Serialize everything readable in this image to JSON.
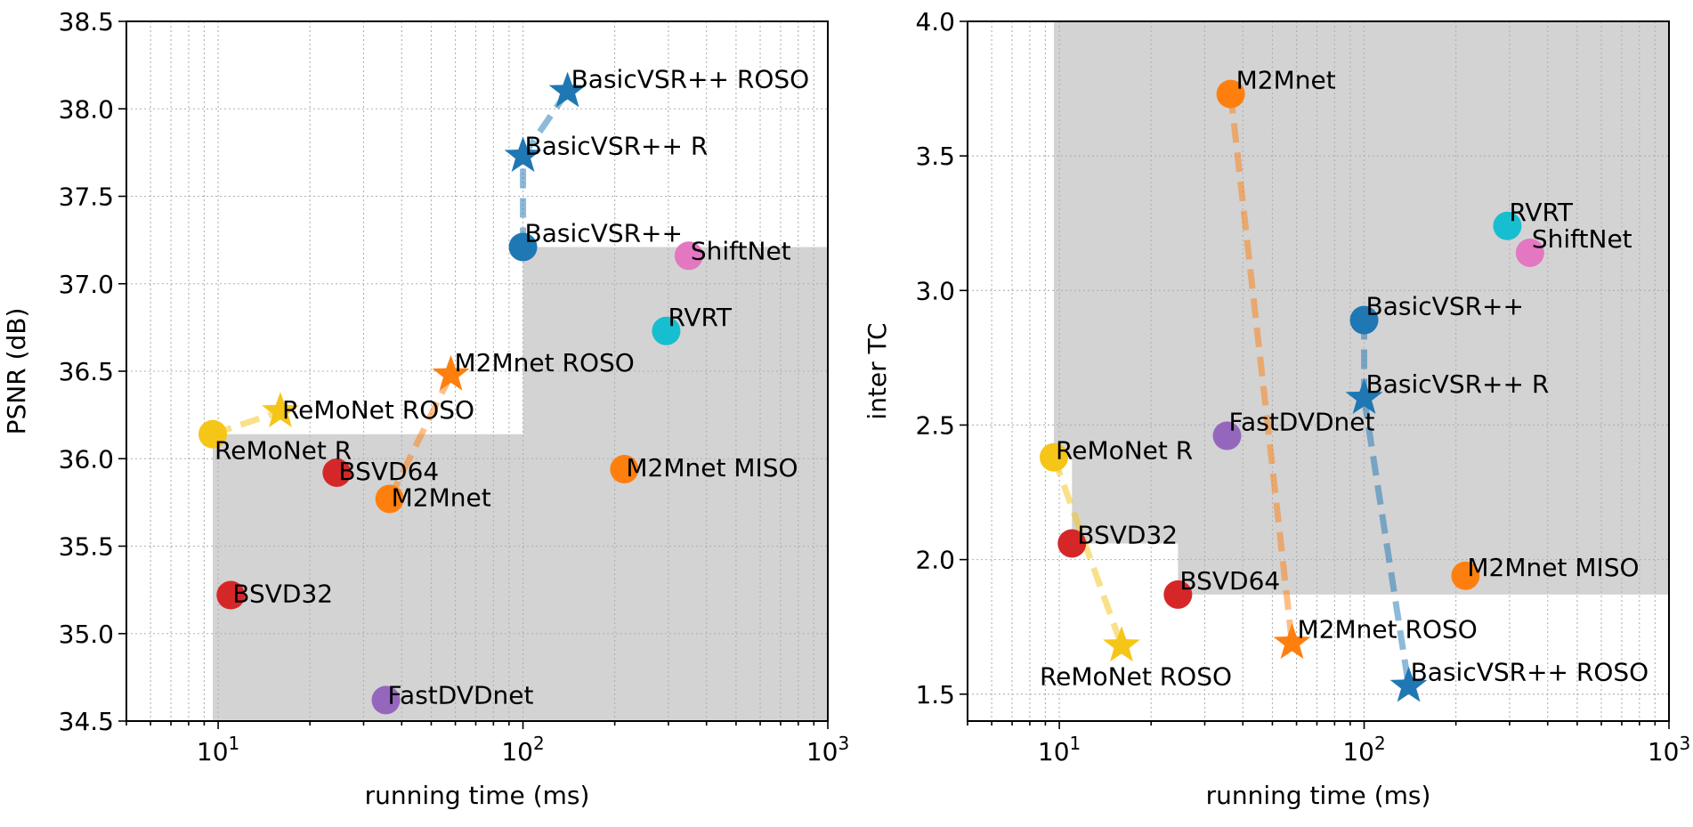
{
  "chart_data": [
    {
      "type": "scatter",
      "xscale": "log",
      "xlim": [
        5,
        1000
      ],
      "ylim": [
        34.5,
        38.5
      ],
      "xlabel": "running time (ms)",
      "ylabel": "PSNR (dB)",
      "grid": "both major and minor, dotted",
      "xticks": [
        "10^1",
        "10^2",
        "10^3"
      ],
      "yticks": [
        "34.5",
        "35.0",
        "35.5",
        "36.0",
        "36.5",
        "37.0",
        "37.5",
        "38.0",
        "38.5"
      ],
      "points": [
        {
          "label": "BasicVSR++ ROSO",
          "x": 140,
          "y": 38.1,
          "marker": "star",
          "color": "#1f77b4"
        },
        {
          "label": "BasicVSR++ R",
          "x": 100,
          "y": 37.73,
          "marker": "star",
          "color": "#1f77b4"
        },
        {
          "label": "BasicVSR++",
          "x": 100,
          "y": 37.21,
          "marker": "circle",
          "color": "#1f77b4"
        },
        {
          "label": "ShiftNet",
          "x": 350,
          "y": 37.16,
          "marker": "circle",
          "color": "#e377c2"
        },
        {
          "label": "RVRT",
          "x": 295,
          "y": 36.73,
          "marker": "circle",
          "color": "#17becf"
        },
        {
          "label": "M2Mnet ROSO",
          "x": 58,
          "y": 36.48,
          "marker": "star",
          "color": "#ff7f0e"
        },
        {
          "label": "ReMoNet ROSO",
          "x": 16,
          "y": 36.27,
          "marker": "star",
          "color": "#f5c518"
        },
        {
          "label": "ReMoNet R",
          "x": 9.6,
          "y": 36.14,
          "marker": "circle",
          "color": "#f5c518"
        },
        {
          "label": "BSVD64",
          "x": 24.5,
          "y": 35.92,
          "marker": "circle",
          "color": "#d62728"
        },
        {
          "label": "M2Mnet",
          "x": 36.5,
          "y": 35.77,
          "marker": "circle",
          "color": "#ff7f0e"
        },
        {
          "label": "M2Mnet MISO",
          "x": 215,
          "y": 35.94,
          "marker": "circle",
          "color": "#ff7f0e"
        },
        {
          "label": "BSVD32",
          "x": 11,
          "y": 35.22,
          "marker": "circle",
          "color": "#d62728"
        },
        {
          "label": "FastDVDnet",
          "x": 35.5,
          "y": 34.62,
          "marker": "circle",
          "color": "#9467bd"
        }
      ],
      "links": [
        {
          "from": "ReMoNet R",
          "to": "ReMoNet ROSO",
          "color": "#f5c518"
        },
        {
          "from": "M2Mnet",
          "to": "M2Mnet ROSO",
          "color": "#ff7f0e"
        },
        {
          "from": "BasicVSR++",
          "to": "BasicVSR++ R",
          "color": "#1f77b4"
        },
        {
          "from": "BasicVSR++ R",
          "to": "BasicVSR++ ROSO",
          "color": "#1f77b4"
        }
      ],
      "shaded_region": [
        [
          9.6,
          34.5
        ],
        [
          9.6,
          36.14
        ],
        [
          100,
          36.14
        ],
        [
          100,
          37.21
        ],
        [
          1000,
          37.21
        ],
        [
          1000,
          34.5
        ]
      ]
    },
    {
      "type": "scatter",
      "xscale": "log",
      "xlim": [
        5,
        1000
      ],
      "ylim": [
        1.4,
        4.0
      ],
      "xlabel": "running time (ms)",
      "ylabel": "inter TC",
      "grid": "both major and minor, dotted",
      "xticks": [
        "10^1",
        "10^2",
        "10^3"
      ],
      "yticks": [
        "1.5",
        "2.0",
        "2.5",
        "3.0",
        "3.5",
        "4.0"
      ],
      "points": [
        {
          "label": "M2Mnet",
          "x": 36.5,
          "y": 3.73,
          "marker": "circle",
          "color": "#ff7f0e"
        },
        {
          "label": "RVRT",
          "x": 295,
          "y": 3.24,
          "marker": "circle",
          "color": "#17becf"
        },
        {
          "label": "ShiftNet",
          "x": 350,
          "y": 3.14,
          "marker": "circle",
          "color": "#e377c2"
        },
        {
          "label": "BasicVSR++",
          "x": 100,
          "y": 2.89,
          "marker": "circle",
          "color": "#1f77b4"
        },
        {
          "label": "BasicVSR++ R",
          "x": 100,
          "y": 2.6,
          "marker": "star",
          "color": "#1f77b4"
        },
        {
          "label": "FastDVDnet",
          "x": 35.5,
          "y": 2.46,
          "marker": "circle",
          "color": "#9467bd"
        },
        {
          "label": "ReMoNet R",
          "x": 9.6,
          "y": 2.38,
          "marker": "circle",
          "color": "#f5c518"
        },
        {
          "label": "BSVD32",
          "x": 11,
          "y": 2.06,
          "marker": "circle",
          "color": "#d62728"
        },
        {
          "label": "M2Mnet MISO",
          "x": 215,
          "y": 1.94,
          "marker": "circle",
          "color": "#ff7f0e"
        },
        {
          "label": "BSVD64",
          "x": 24.5,
          "y": 1.87,
          "marker": "circle",
          "color": "#d62728"
        },
        {
          "label": "M2Mnet ROSO",
          "x": 58,
          "y": 1.69,
          "marker": "star",
          "color": "#ff7f0e"
        },
        {
          "label": "ReMoNet ROSO",
          "x": 16,
          "y": 1.68,
          "marker": "star",
          "color": "#f5c518"
        },
        {
          "label": "BasicVSR++ ROSO",
          "x": 140,
          "y": 1.53,
          "marker": "star",
          "color": "#1f77b4"
        }
      ],
      "links": [
        {
          "from": "ReMoNet R",
          "to": "ReMoNet ROSO",
          "color": "#f5c518"
        },
        {
          "from": "M2Mnet",
          "to": "M2Mnet ROSO",
          "color": "#ff7f0e"
        },
        {
          "from": "BasicVSR++",
          "to": "BasicVSR++ R",
          "color": "#1f77b4"
        },
        {
          "from": "BasicVSR++ R",
          "to": "BasicVSR++ ROSO",
          "color": "#1f77b4"
        }
      ],
      "shaded_region": [
        [
          9.6,
          4.0
        ],
        [
          9.6,
          2.38
        ],
        [
          11,
          2.38
        ],
        [
          11,
          2.06
        ],
        [
          24.5,
          2.06
        ],
        [
          24.5,
          1.87
        ],
        [
          1000,
          1.87
        ],
        [
          1000,
          4.0
        ]
      ]
    }
  ]
}
